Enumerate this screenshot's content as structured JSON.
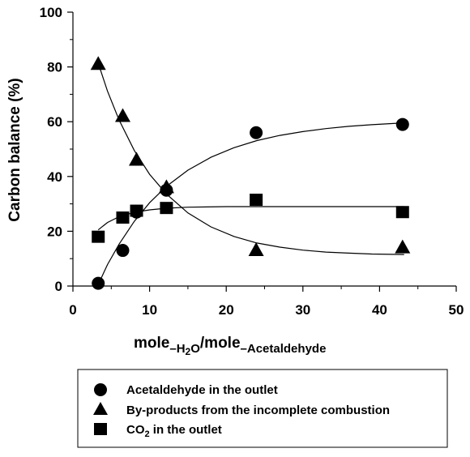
{
  "chart_data": {
    "type": "scatter",
    "title": "",
    "xlabel_parts": {
      "a": "mole",
      "sub_a": "–H",
      "sub_2": "2",
      "sub_o": "O",
      "slash": "/mole",
      "sub_b": "–Acetaldehyde"
    },
    "ylabel": "Carbon balance (%)",
    "xlim": [
      0,
      50
    ],
    "ylim": [
      0,
      100
    ],
    "x_ticks": [
      "0",
      "10",
      "20",
      "30",
      "40",
      "50"
    ],
    "y_ticks": [
      "0",
      "20",
      "40",
      "60",
      "80",
      "100"
    ],
    "grid": false,
    "legend_position": "bottom-outside",
    "series": [
      {
        "name": "Acetaldehyde in the outlet",
        "marker": "circle",
        "color": "#000000",
        "x": [
          3.3,
          6.5,
          8.3,
          12.2,
          23.9,
          43.0
        ],
        "y": [
          1,
          13,
          27,
          35,
          56,
          59
        ],
        "fit_curve": {
          "model": "rise-to-max",
          "points": [
            [
              3.3,
              0.5
            ],
            [
              4.5,
              7.8
            ],
            [
              6,
              15.2
            ],
            [
              8,
              23.6
            ],
            [
              10,
              30.4
            ],
            [
              12.2,
              36.4
            ],
            [
              15,
              42.3
            ],
            [
              18,
              47.0
            ],
            [
              21,
              50.5
            ],
            [
              24,
              53.1
            ],
            [
              27,
              55.0
            ],
            [
              30,
              56.4
            ],
            [
              33,
              57.5
            ],
            [
              36,
              58.3
            ],
            [
              39,
              58.9
            ],
            [
              43.2,
              59.6
            ]
          ]
        }
      },
      {
        "name": "By-products from the incomplete combustion",
        "marker": "triangle",
        "color": "#000000",
        "x": [
          3.3,
          6.5,
          8.3,
          12.2,
          23.9,
          43.0
        ],
        "y": [
          81,
          62,
          46,
          36,
          13,
          14
        ],
        "fit_curve": {
          "model": "exponential-decay",
          "points": [
            [
              3.3,
              81.4
            ],
            [
              4.5,
              71.2
            ],
            [
              6,
              60.7
            ],
            [
              8,
              49.5
            ],
            [
              10,
              40.8
            ],
            [
              12.2,
              33.6
            ],
            [
              15,
              26.7
            ],
            [
              18,
              21.6
            ],
            [
              21,
              18.1
            ],
            [
              24,
              15.7
            ],
            [
              27,
              14.2
            ],
            [
              30,
              13.1
            ],
            [
              33,
              12.4
            ],
            [
              36,
              12.0
            ],
            [
              39,
              11.7
            ],
            [
              43.2,
              11.5
            ]
          ]
        }
      },
      {
        "name": "CO₂ in the outlet",
        "name_parts": {
          "main": "CO",
          "sub": "2",
          "rest": " in the outlet"
        },
        "marker": "square",
        "color": "#000000",
        "x": [
          3.3,
          6.5,
          8.3,
          12.2,
          23.9,
          43.0
        ],
        "y": [
          18,
          25,
          27.5,
          28.5,
          31.5,
          27
        ],
        "fit_curve": {
          "model": "rise-to-max",
          "points": [
            [
              3.3,
              20.5
            ],
            [
              4.5,
              23.2
            ],
            [
              6,
              25.3
            ],
            [
              8,
              26.9
            ],
            [
              10,
              27.8
            ],
            [
              12.2,
              28.4
            ],
            [
              15,
              28.8
            ],
            [
              20,
              29.0
            ],
            [
              30,
              29.0
            ],
            [
              43.2,
              29.0
            ]
          ]
        }
      }
    ]
  }
}
